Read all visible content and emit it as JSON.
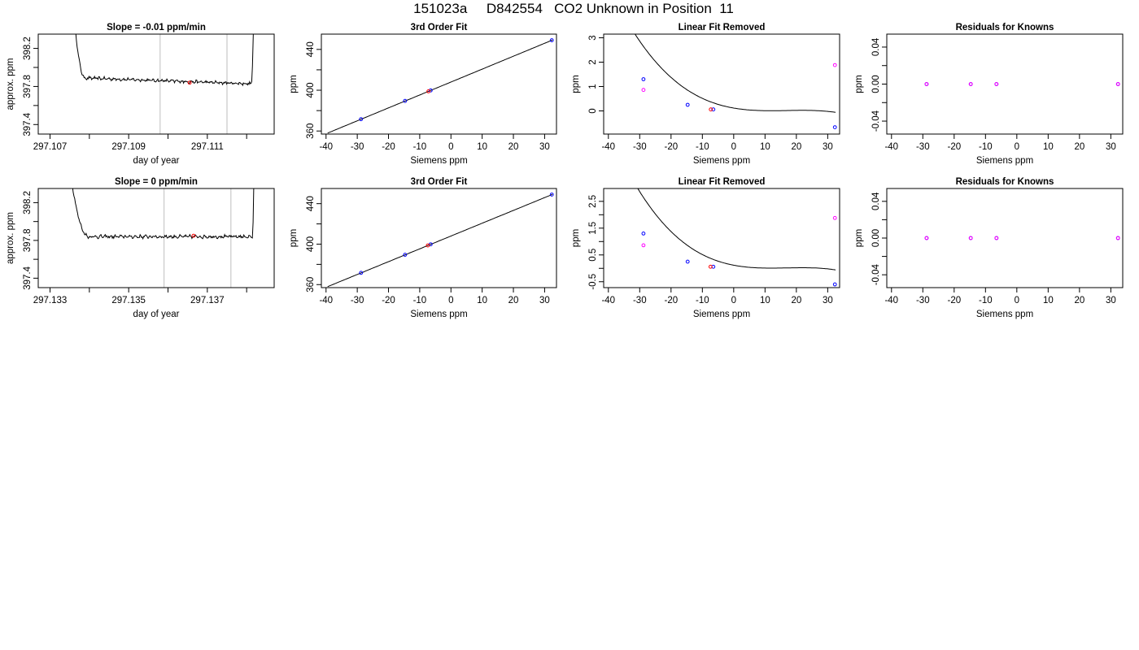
{
  "page": {
    "title": "151023a     D842554   CO2 Unknown in Position  11"
  },
  "colors": {
    "line": "#000000",
    "known_points": "#0000ff",
    "unknown_points": "#ff0000",
    "extra_points": "#ff00ff",
    "cursor_lines": "#bebebe"
  },
  "chart_data": [
    {
      "id": "r1c1",
      "type": "line",
      "title": "Slope =  -0.01  ppm/min",
      "xlabel": "day of year",
      "ylabel": "approx. ppm",
      "xlim": [
        297.1067,
        297.1127
      ],
      "ylim": [
        397.3,
        398.35
      ],
      "xticks": [
        297.107,
        297.108,
        297.109,
        297.11,
        297.111,
        297.112
      ],
      "xtick_labels": [
        "297.107",
        "",
        "297.109",
        "",
        "297.111",
        ""
      ],
      "yticks": [
        397.4,
        397.6,
        397.8,
        398.0,
        398.2
      ],
      "ytick_labels": [
        "397.4",
        "",
        "397.8",
        "",
        "398.2"
      ],
      "vlines": [
        297.1098,
        297.1115
      ],
      "trace": {
        "x_start": 297.1076,
        "x_end": 297.1122,
        "rise_left_end": 297.1079,
        "rise_right_start": 297.11212,
        "level": 397.86,
        "spike": 398.6,
        "slope_per_day": -14.4,
        "noise": 0.012
      },
      "markers": [
        {
          "x": 297.11055,
          "y": 397.84,
          "color": "#ff0000"
        }
      ]
    },
    {
      "id": "r1c2",
      "type": "scatter",
      "title": "3rd Order Fit",
      "xlabel": "Siemens ppm",
      "ylabel": "ppm",
      "xlim": [
        -41.5,
        33.8
      ],
      "ylim": [
        357,
        455
      ],
      "xticks": [
        -40,
        -30,
        -20,
        -10,
        0,
        10,
        20,
        30
      ],
      "xtick_labels": [
        "-40",
        "-30",
        "-20",
        "-10",
        "0",
        "10",
        "20",
        "30"
      ],
      "yticks": [
        360,
        380,
        400,
        420,
        440
      ],
      "ytick_labels": [
        "360",
        "",
        "400",
        "",
        "440"
      ],
      "curve": {
        "x_start": -39.5,
        "x_end": 32.5,
        "slope": 1.267,
        "intercept": 408.0
      },
      "points": [
        {
          "x": -28.8,
          "y": 371.6,
          "color": "#0000ff"
        },
        {
          "x": -14.7,
          "y": 389.5,
          "color": "#0000ff"
        },
        {
          "x": -6.5,
          "y": 399.8,
          "color": "#0000ff"
        },
        {
          "x": 32.3,
          "y": 449.0,
          "color": "#0000ff"
        },
        {
          "x": -7.2,
          "y": 398.9,
          "color": "#ff0000"
        }
      ]
    },
    {
      "id": "r1c3",
      "type": "scatter",
      "title": "Linear Fit Removed",
      "xlabel": "Siemens ppm",
      "ylabel": "ppm",
      "xlim": [
        -41.5,
        33.8
      ],
      "ylim": [
        -0.95,
        3.15
      ],
      "xticks": [
        -40,
        -30,
        -20,
        -10,
        0,
        10,
        20,
        30
      ],
      "xtick_labels": [
        "-40",
        "-30",
        "-20",
        "-10",
        "0",
        "10",
        "20",
        "30"
      ],
      "yticks": [
        0,
        1,
        2,
        3
      ],
      "ytick_labels": [
        "0",
        "1",
        "2",
        "3"
      ],
      "curve": {
        "x_start": -39.5,
        "x_end": 32.5,
        "cubic": [
          0.117,
          -0.0224,
          0.00145,
          -2.85e-05
        ]
      },
      "points": [
        {
          "x": -28.8,
          "y": 1.3,
          "color": "#0000ff"
        },
        {
          "x": -14.7,
          "y": 0.25,
          "color": "#0000ff"
        },
        {
          "x": -6.5,
          "y": 0.06,
          "color": "#0000ff"
        },
        {
          "x": 32.3,
          "y": -0.67,
          "color": "#0000ff"
        },
        {
          "x": -7.3,
          "y": 0.06,
          "color": "#ff0000"
        },
        {
          "x": -28.8,
          "y": 0.86,
          "color": "#ff00ff"
        },
        {
          "x": 32.3,
          "y": 1.88,
          "color": "#ff00ff"
        }
      ]
    },
    {
      "id": "r1c4",
      "type": "scatter",
      "title": "Residuals for Knowns",
      "xlabel": "Siemens ppm",
      "ylabel": "ppm",
      "xlim": [
        -41.5,
        33.8
      ],
      "ylim": [
        -0.054,
        0.054
      ],
      "xticks": [
        -40,
        -30,
        -20,
        -10,
        0,
        10,
        20,
        30
      ],
      "xtick_labels": [
        "-40",
        "-30",
        "-20",
        "-10",
        "0",
        "10",
        "20",
        "30"
      ],
      "yticks": [
        -0.04,
        -0.02,
        0.0,
        0.02,
        0.04
      ],
      "ytick_labels": [
        "-0.04",
        "",
        "0.00",
        "",
        "0.04"
      ],
      "points": [
        {
          "x": -28.8,
          "y": 0.0,
          "color": "#0000ff"
        },
        {
          "x": -14.7,
          "y": 0.0,
          "color": "#0000ff"
        },
        {
          "x": -6.5,
          "y": 0.0,
          "color": "#0000ff"
        },
        {
          "x": 32.3,
          "y": 0.0,
          "color": "#0000ff"
        },
        {
          "x": -28.8,
          "y": 0.0,
          "color": "#ff00ff"
        },
        {
          "x": -14.7,
          "y": 0.0,
          "color": "#ff00ff"
        },
        {
          "x": -6.5,
          "y": 0.0,
          "color": "#ff00ff"
        },
        {
          "x": 32.3,
          "y": 0.0,
          "color": "#ff00ff"
        }
      ]
    },
    {
      "id": "r2c1",
      "type": "line",
      "title": "Slope =  0  ppm/min",
      "xlabel": "day of year",
      "ylabel": "approx. ppm",
      "xlim": [
        297.1327,
        297.1387
      ],
      "ylim": [
        397.3,
        398.35
      ],
      "xticks": [
        297.133,
        297.134,
        297.135,
        297.136,
        297.137,
        297.138
      ],
      "xtick_labels": [
        "297.133",
        "",
        "297.135",
        "",
        "297.137",
        ""
      ],
      "yticks": [
        397.4,
        397.6,
        397.8,
        398.0,
        398.2
      ],
      "ytick_labels": [
        "397.4",
        "",
        "397.8",
        "",
        "398.2"
      ],
      "vlines": [
        297.1359,
        297.1376
      ],
      "trace": {
        "x_start": 297.1335,
        "x_end": 297.1382,
        "rise_left_end": 297.134,
        "rise_right_start": 297.13815,
        "level": 397.84,
        "spike": 398.6,
        "slope_per_day": 0.0,
        "noise": 0.013
      },
      "markers": [
        {
          "x": 297.13665,
          "y": 397.85,
          "color": "#ff0000"
        }
      ]
    },
    {
      "id": "r2c2",
      "type": "scatter",
      "title": "3rd Order Fit",
      "xlabel": "Siemens ppm",
      "ylabel": "ppm",
      "xlim": [
        -41.5,
        33.8
      ],
      "ylim": [
        357,
        455
      ],
      "xticks": [
        -40,
        -30,
        -20,
        -10,
        0,
        10,
        20,
        30
      ],
      "xtick_labels": [
        "-40",
        "-30",
        "-20",
        "-10",
        "0",
        "10",
        "20",
        "30"
      ],
      "yticks": [
        360,
        380,
        400,
        420,
        440
      ],
      "ytick_labels": [
        "360",
        "",
        "400",
        "",
        "440"
      ],
      "curve": {
        "x_start": -39.5,
        "x_end": 32.5,
        "slope": 1.267,
        "intercept": 408.0
      },
      "points": [
        {
          "x": -28.8,
          "y": 371.6,
          "color": "#0000ff"
        },
        {
          "x": -14.7,
          "y": 389.5,
          "color": "#0000ff"
        },
        {
          "x": -6.5,
          "y": 399.8,
          "color": "#0000ff"
        },
        {
          "x": 32.3,
          "y": 449.0,
          "color": "#0000ff"
        },
        {
          "x": -7.4,
          "y": 398.7,
          "color": "#ff0000"
        }
      ]
    },
    {
      "id": "r2c3",
      "type": "scatter",
      "title": "Linear Fit Removed",
      "xlabel": "Siemens ppm",
      "ylabel": "ppm",
      "xlim": [
        -41.5,
        33.8
      ],
      "ylim": [
        -0.72,
        2.98
      ],
      "xticks": [
        -40,
        -30,
        -20,
        -10,
        0,
        10,
        20,
        30
      ],
      "xtick_labels": [
        "-40",
        "-30",
        "-20",
        "-10",
        "0",
        "10",
        "20",
        "30"
      ],
      "yticks": [
        -0.5,
        0.0,
        0.5,
        1.0,
        1.5,
        2.0,
        2.5
      ],
      "ytick_labels": [
        "-0.5",
        "",
        "0.5",
        "",
        "1.5",
        "",
        "2.5"
      ],
      "curve": {
        "x_start": -39.5,
        "x_end": 32.5,
        "cubic": [
          0.117,
          -0.0224,
          0.00145,
          -2.85e-05
        ]
      },
      "points": [
        {
          "x": -28.8,
          "y": 1.3,
          "color": "#0000ff"
        },
        {
          "x": -14.7,
          "y": 0.25,
          "color": "#0000ff"
        },
        {
          "x": -6.5,
          "y": 0.06,
          "color": "#0000ff"
        },
        {
          "x": 32.3,
          "y": -0.6,
          "color": "#0000ff"
        },
        {
          "x": -7.4,
          "y": 0.06,
          "color": "#ff0000"
        },
        {
          "x": -28.8,
          "y": 0.86,
          "color": "#ff00ff"
        },
        {
          "x": 32.3,
          "y": 1.88,
          "color": "#ff00ff"
        }
      ]
    },
    {
      "id": "r2c4",
      "type": "scatter",
      "title": "Residuals for Knowns",
      "xlabel": "Siemens ppm",
      "ylabel": "ppm",
      "xlim": [
        -41.5,
        33.8
      ],
      "ylim": [
        -0.054,
        0.054
      ],
      "xticks": [
        -40,
        -30,
        -20,
        -10,
        0,
        10,
        20,
        30
      ],
      "xtick_labels": [
        "-40",
        "-30",
        "-20",
        "-10",
        "0",
        "10",
        "20",
        "30"
      ],
      "yticks": [
        -0.04,
        -0.02,
        0.0,
        0.02,
        0.04
      ],
      "ytick_labels": [
        "-0.04",
        "",
        "0.00",
        "",
        "0.04"
      ],
      "points": [
        {
          "x": -28.8,
          "y": 0.0,
          "color": "#0000ff"
        },
        {
          "x": -14.7,
          "y": 0.0,
          "color": "#0000ff"
        },
        {
          "x": -6.5,
          "y": 0.0,
          "color": "#0000ff"
        },
        {
          "x": 32.3,
          "y": 0.0,
          "color": "#0000ff"
        },
        {
          "x": -28.8,
          "y": 0.0,
          "color": "#ff00ff"
        },
        {
          "x": -14.7,
          "y": 0.0,
          "color": "#ff00ff"
        },
        {
          "x": -6.5,
          "y": 0.0,
          "color": "#ff00ff"
        },
        {
          "x": 32.3,
          "y": 0.0,
          "color": "#ff00ff"
        }
      ]
    }
  ]
}
